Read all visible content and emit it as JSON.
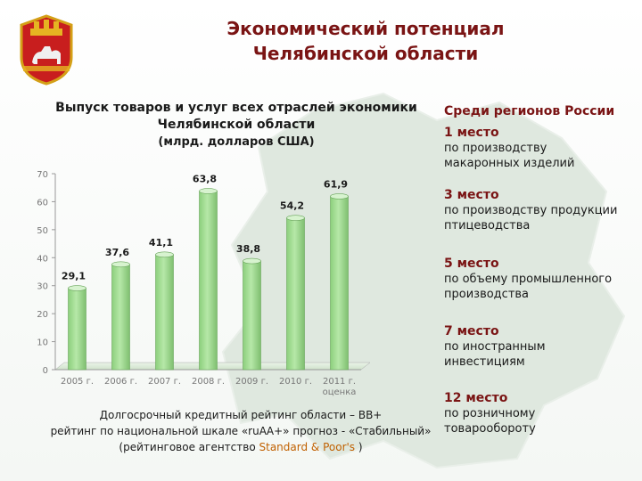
{
  "title_line1": "Экономический потенциал",
  "title_line2": "Челябинской области",
  "chart_heading_line1": "Выпуск товаров и услуг всех отраслей экономики",
  "chart_heading_line2": "Челябинской области",
  "chart_unit": "(млрд. долларов США)",
  "chart_data": {
    "type": "bar",
    "categories": [
      "2005 г.",
      "2006 г.",
      "2007 г.",
      "2008 г.",
      "2009 г.",
      "2010 г.",
      "2011 г."
    ],
    "category_notes": [
      "",
      "",
      "",
      "",
      "",
      "",
      "оценка"
    ],
    "values": [
      29.1,
      37.6,
      41.1,
      63.8,
      38.8,
      54.2,
      61.9
    ],
    "value_labels": [
      "29,1",
      "37,6",
      "41,1",
      "63,8",
      "38,8",
      "54,2",
      "61,9"
    ],
    "yticks": [
      0,
      10,
      20,
      30,
      40,
      50,
      60,
      70
    ],
    "ylim": [
      0,
      70
    ],
    "grid": false,
    "bar_color": "#b6e8a8"
  },
  "ranking": {
    "heading": "Среди регионов России",
    "items": [
      {
        "place": "1 место",
        "desc": "по производству макаронных изделий"
      },
      {
        "place": "3 место",
        "desc": "по производству продукции птицеводства"
      },
      {
        "place": "5 место",
        "desc": "по объему промышленного производства"
      },
      {
        "place": "7 место",
        "desc": "по иностранным инвестициям"
      },
      {
        "place": "12 место",
        "desc": "по розничному товарообороту"
      }
    ]
  },
  "rating": {
    "line1": "Долгосрочный кредитный рейтинг области – ВВ+",
    "line2": "рейтинг по национальной шкале «ruАА+» прогноз - «Стабильный»",
    "line3_prefix": "(рейтинговое агентство ",
    "line3_agency": "Standard & Poor's",
    "line3_suffix": " )"
  },
  "colors": {
    "title": "#7a1414",
    "rank_place": "#7a1414",
    "agency": "#c06000"
  },
  "icons": {
    "emblem": "chelyabinsk-coat-of-arms-icon"
  }
}
